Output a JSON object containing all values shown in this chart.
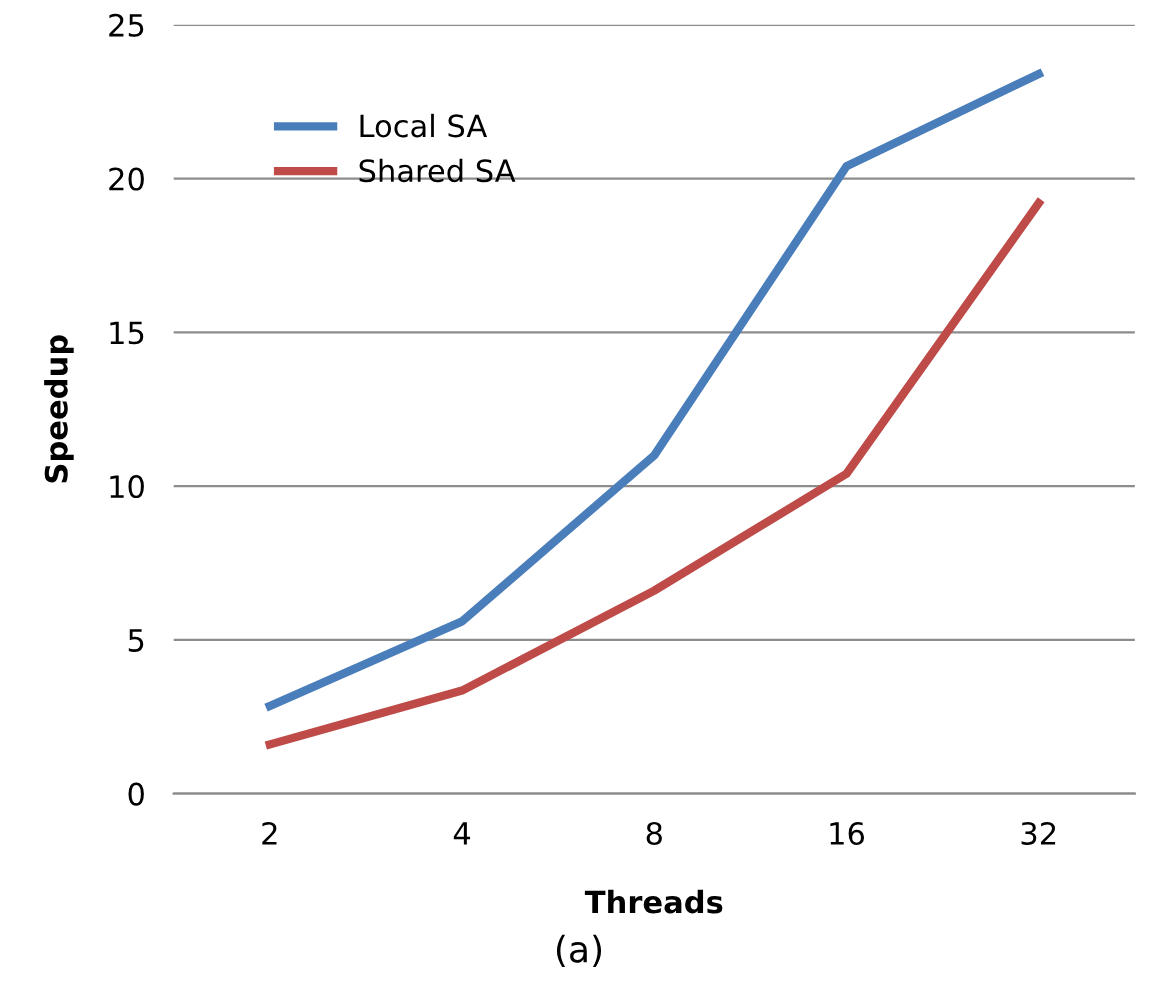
{
  "chart_data": {
    "type": "line",
    "xlabel": "Threads",
    "ylabel": "Speedup",
    "categories": [
      "2",
      "4",
      "8",
      "16",
      "32"
    ],
    "series": [
      {
        "name": "Local SA",
        "color": "#4a7ebb",
        "values": [
          2.85,
          5.6,
          11.0,
          20.4,
          23.4
        ]
      },
      {
        "name": "Shared SA",
        "color": "#be4b48",
        "values": [
          1.6,
          3.35,
          6.6,
          10.4,
          19.2
        ]
      }
    ],
    "ylim": [
      0,
      25
    ],
    "yticks": [
      0,
      5,
      10,
      15,
      20,
      25
    ],
    "grid": "y",
    "legend": "top left",
    "marker": "none",
    "line_style": "solid",
    "annotations": [
      "(a)"
    ]
  }
}
